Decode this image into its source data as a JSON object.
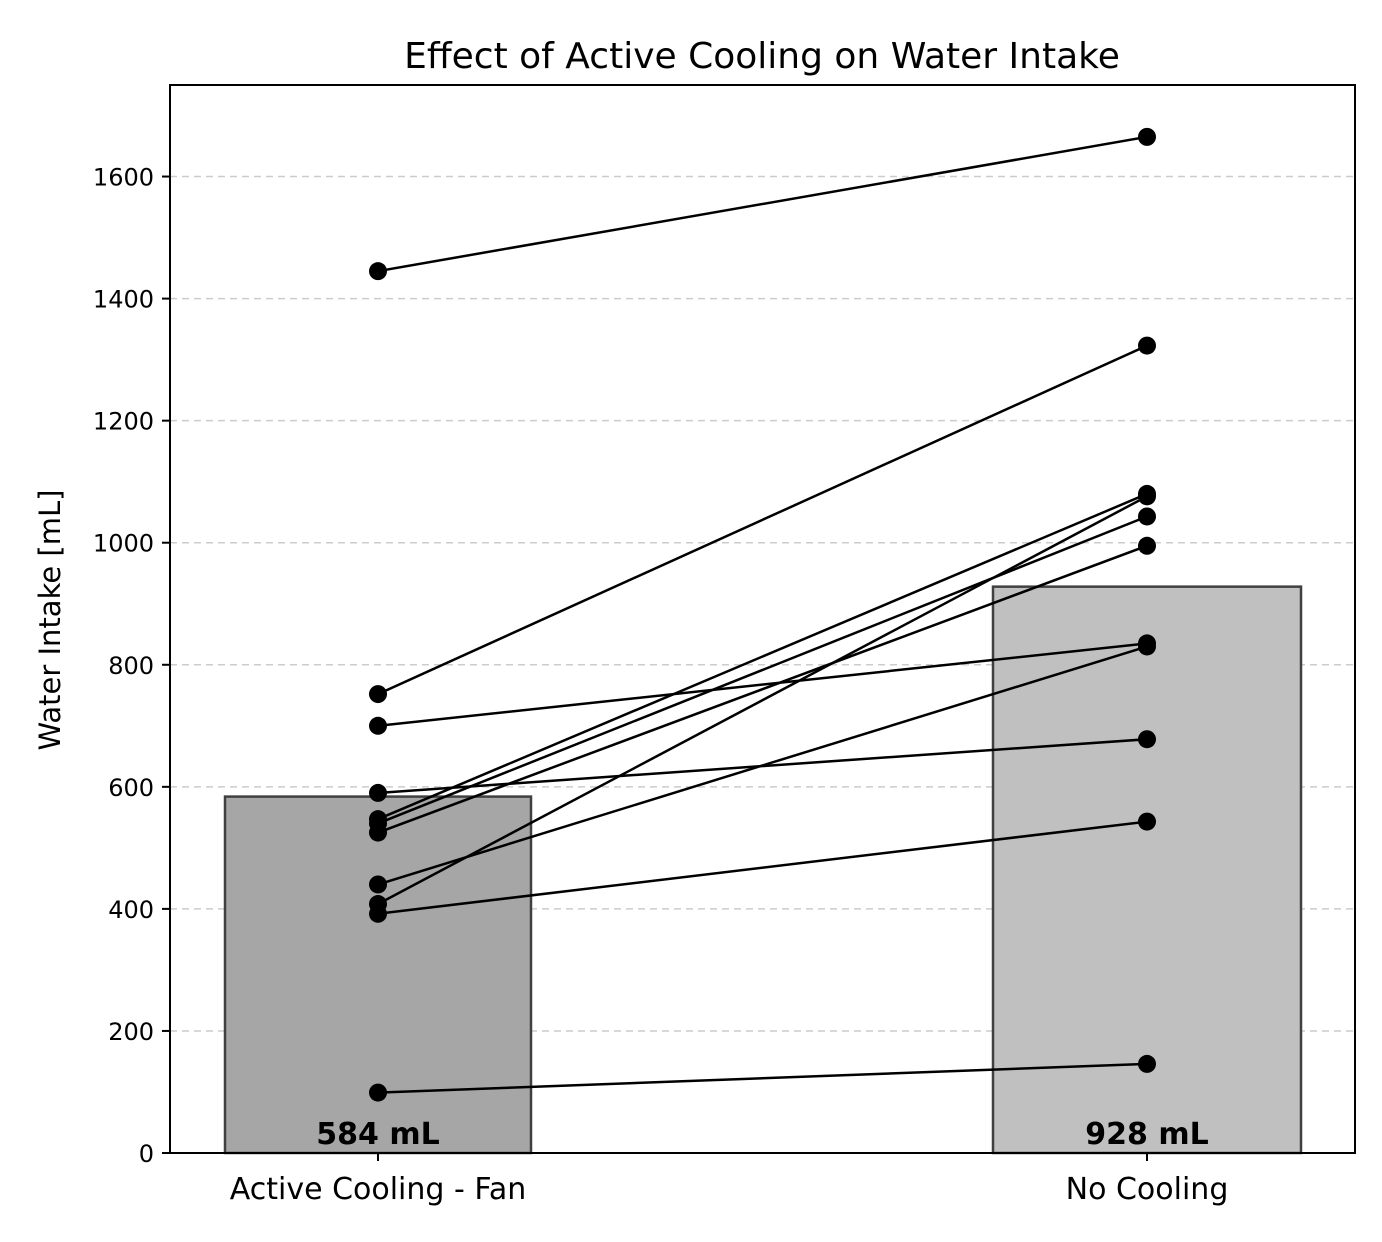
{
  "chart_data": {
    "type": "bar",
    "title": "Effect of Active Cooling on Water Intake",
    "xlabel": "",
    "ylabel": "Water Intake [mL]",
    "ylim": [
      0,
      1750
    ],
    "yticks": [
      0,
      200,
      400,
      600,
      800,
      1000,
      1200,
      1400,
      1600
    ],
    "grid": "y-dashed",
    "categories": [
      "Active Cooling - Fan",
      "No Cooling"
    ],
    "bar_values": [
      584,
      928
    ],
    "bar_labels": [
      "584 mL",
      "928 mL"
    ],
    "bar_colors": [
      "#a6a6a6",
      "#c0c0c0"
    ],
    "paired_points": [
      {
        "active": 1445,
        "none": 1665
      },
      {
        "active": 752,
        "none": 1323
      },
      {
        "active": 700,
        "none": 835
      },
      {
        "active": 590,
        "none": 678
      },
      {
        "active": 547,
        "none": 1080
      },
      {
        "active": 540,
        "none": 1043
      },
      {
        "active": 525,
        "none": 995
      },
      {
        "active": 440,
        "none": 830
      },
      {
        "active": 408,
        "none": 1076
      },
      {
        "active": 392,
        "none": 543
      },
      {
        "active": 99,
        "none": 146
      }
    ]
  }
}
